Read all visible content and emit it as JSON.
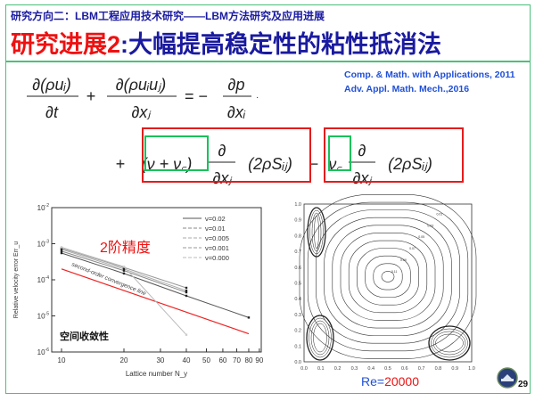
{
  "header": {
    "subtitle": "研究方向二：LBM工程应用技术研究——LBM方法研究及应用进展",
    "title_red": "研究进展2",
    "title_blue": ":大幅提高稳定性的粘性抵消法"
  },
  "references": [
    "Comp. & Math. with Applications, 2011",
    "Adv. Appl. Math. Mech.,2016"
  ],
  "equation": {
    "t1_num": "∂(ρuᵢ)",
    "t1_den": "∂t",
    "plus1": "+",
    "t2_num": "∂(ρuᵢuⱼ)",
    "t2_den": "∂xⱼ",
    "eq": "= −",
    "t3_num": "∂p",
    "t3_den": "∂xᵢ",
    "dot": "·",
    "plus2": "+",
    "visc_sum": "(ν + ν꜀)",
    "d_num": "∂",
    "d_den": "∂xⱼ",
    "stress": "(2ρSᵢⱼ)",
    "minus": "−",
    "visc_c": "ν꜀"
  },
  "annotations": {
    "order_label": "2阶精度",
    "convergence_label": "空间收敛性"
  },
  "caption": {
    "re_label": "Re=",
    "re_value": "20000"
  },
  "page_number": "29",
  "colors": {
    "frame": "#4cc07a",
    "title_blue": "#1a1aa0",
    "accent_red": "#ee1111",
    "ref_blue": "#1f4fd8"
  },
  "chart_data": [
    {
      "type": "line",
      "xscale": "log",
      "yscale": "log",
      "xlabel": "Lattice number N_y",
      "ylabel": "Relative velocity error Err_u",
      "xlim": [
        9,
        90
      ],
      "ylim": [
        1e-06,
        0.01
      ],
      "xticks": [
        10,
        20,
        30,
        40,
        50,
        60,
        70,
        80,
        90
      ],
      "yticks": [
        {
          "v": 1e-06,
          "label": "10-6"
        },
        {
          "v": 1e-05,
          "label": "10-5"
        },
        {
          "v": 0.0001,
          "label": "10-4"
        },
        {
          "v": 0.001,
          "label": "10-3"
        },
        {
          "v": 0.01,
          "label": "10-2"
        }
      ],
      "legend_position": "top-right",
      "series": [
        {
          "name": "ν=0.02",
          "x": [
            10,
            20,
            40,
            80
          ],
          "y": [
            0.00055,
            0.00015,
            3.6e-05,
            9e-06
          ],
          "color": "#555555"
        },
        {
          "name": "ν=0.01",
          "x": [
            10,
            20,
            40
          ],
          "y": [
            0.00062,
            0.00018,
            4.5e-05
          ],
          "color": "#888888"
        },
        {
          "name": "ν=0.005",
          "x": [
            10,
            20,
            40
          ],
          "y": [
            0.0007,
            0.0002,
            5e-05
          ],
          "color": "#aaaaaa"
        },
        {
          "name": "ν=0.001",
          "x": [
            10,
            20,
            40
          ],
          "y": [
            0.00075,
            0.00022,
            6e-05
          ],
          "color": "#999999"
        },
        {
          "name": "ν=0.000",
          "x": [
            10,
            20,
            40
          ],
          "y": [
            0.0008,
            0.00023,
            3e-06
          ],
          "color": "#bbbbbb"
        }
      ],
      "reference_line": {
        "name": "second-order convergence line",
        "x": [
          10,
          80
        ],
        "y": [
          0.0002,
          3.2e-06
        ],
        "color": "#ee2222"
      }
    },
    {
      "type": "contour",
      "xlim": [
        0,
        1
      ],
      "ylim": [
        0,
        1
      ],
      "xticks": [
        "0.0",
        "0.1",
        "0.2",
        "0.3",
        "0.4",
        "0.5",
        "0.6",
        "0.7",
        "0.8",
        "0.9",
        "1.0"
      ],
      "yticks": [
        "0.0",
        "0.1",
        "0.2",
        "0.3",
        "0.4",
        "0.5",
        "0.6",
        "0.7",
        "0.8",
        "0.9",
        "1.0"
      ],
      "center": [
        0.5,
        0.54
      ],
      "levels": [
        "0.11",
        "0.10",
        "0.09",
        "0.08",
        "0.07",
        "0.06",
        "0.05",
        "0.04",
        "0.03",
        "0.02",
        "0.01"
      ]
    }
  ]
}
